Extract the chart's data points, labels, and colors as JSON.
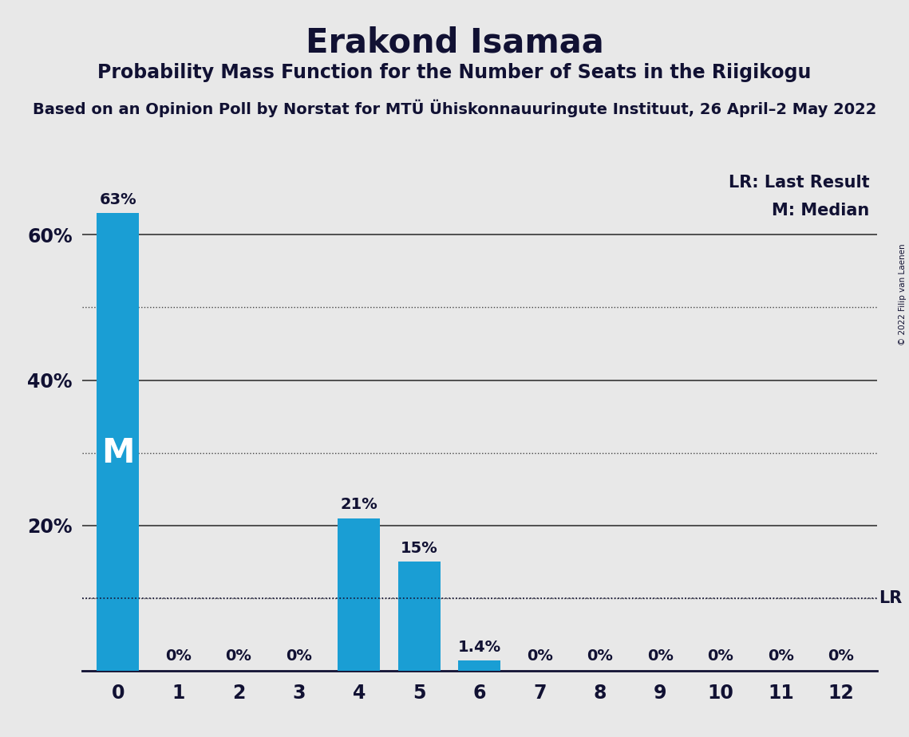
{
  "title": "Erakond Isamaa",
  "subtitle": "Probability Mass Function for the Number of Seats in the Riigikogu",
  "source_line": "Based on an Opinion Poll by Norstat for MTÜ Ühiskonnauuringute Instituut, 26 April–2 May 2022",
  "copyright": "© 2022 Filip van Laenen",
  "categories": [
    0,
    1,
    2,
    3,
    4,
    5,
    6,
    7,
    8,
    9,
    10,
    11,
    12
  ],
  "values": [
    63.0,
    0.0,
    0.0,
    0.0,
    21.0,
    15.0,
    1.4,
    0.0,
    0.0,
    0.0,
    0.0,
    0.0,
    0.0
  ],
  "bar_labels": [
    "63%",
    "0%",
    "0%",
    "0%",
    "21%",
    "15%",
    "1.4%",
    "0%",
    "0%",
    "0%",
    "0%",
    "0%",
    "0%"
  ],
  "bar_color": "#1a9ed4",
  "background_color": "#e8e8e8",
  "ylim": [
    0,
    70
  ],
  "solid_grid": [
    20,
    40,
    60
  ],
  "dotted_grid": [
    10,
    30,
    50
  ],
  "lr_value": 10.0,
  "lr_label": "LR",
  "median_seat": 0,
  "median_label": "M",
  "legend_lr": "LR: Last Result",
  "legend_m": "M: Median",
  "title_fontsize": 30,
  "subtitle_fontsize": 17,
  "source_fontsize": 14,
  "bar_label_fontsize": 14,
  "tick_fontsize": 17,
  "ytick_label_fontsize": 17,
  "legend_fontsize": 15,
  "lr_label_fontsize": 15,
  "median_fontsize": 30
}
